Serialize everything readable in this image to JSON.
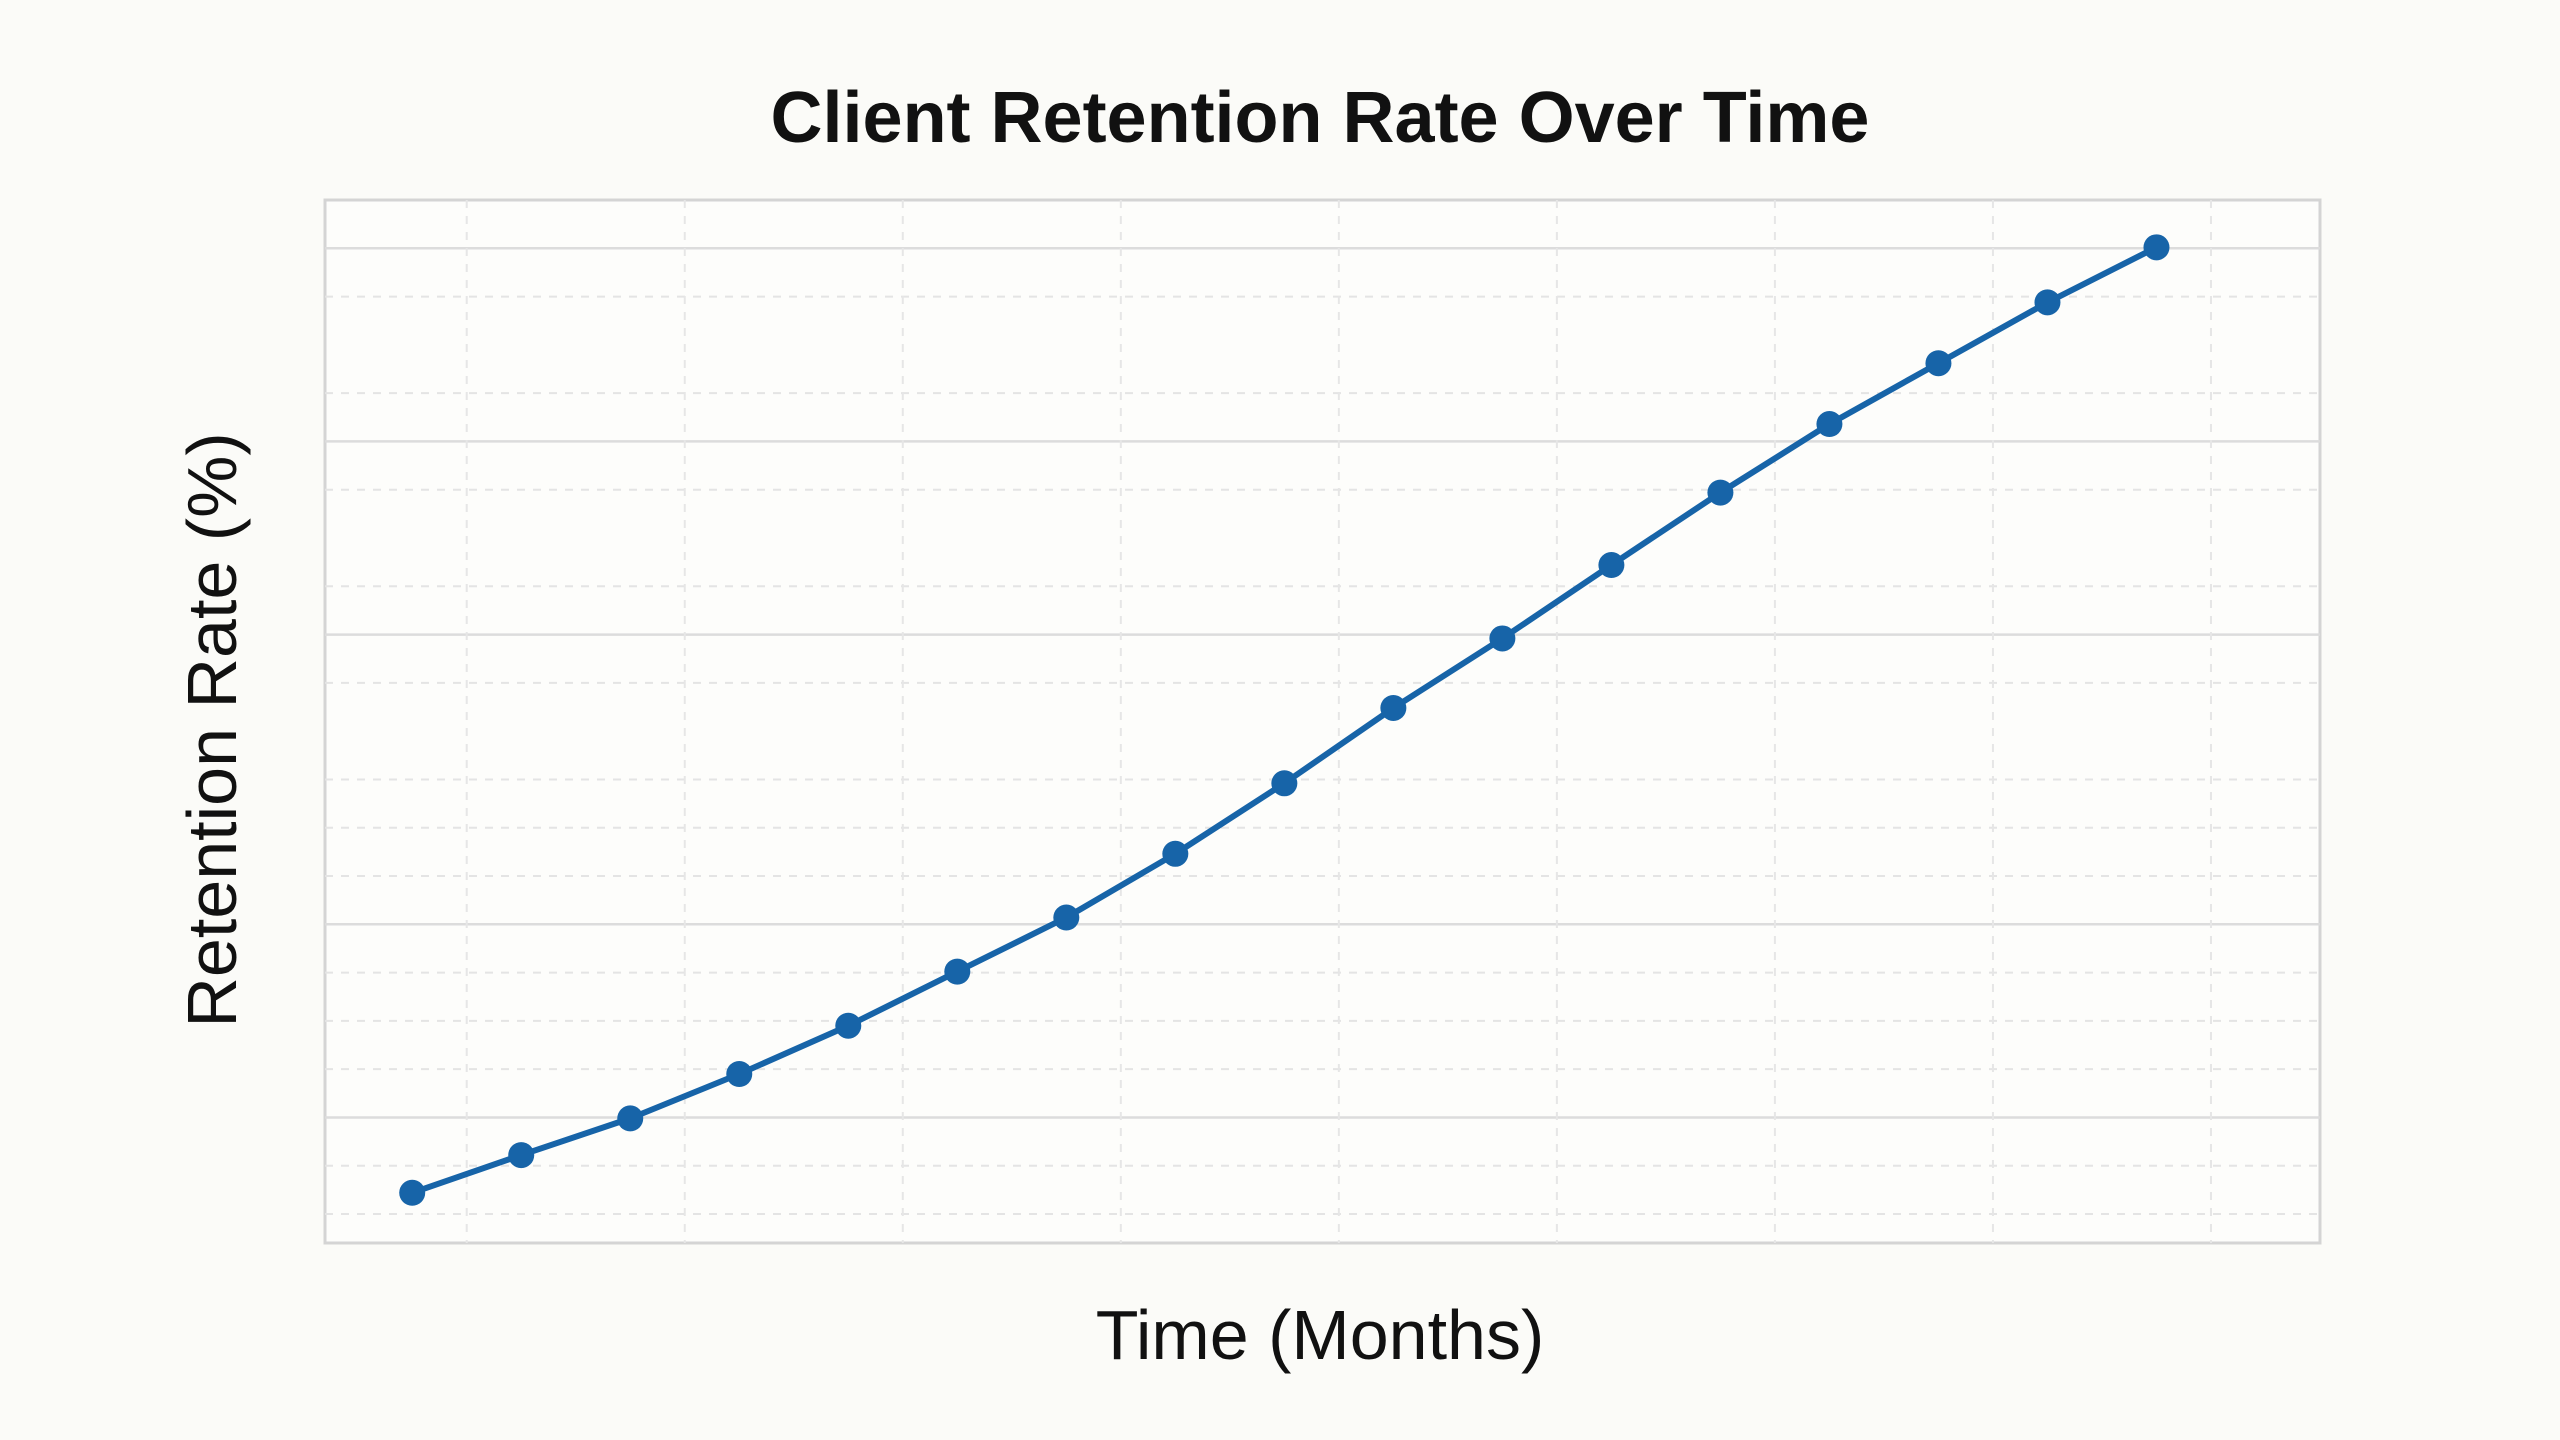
{
  "chart_data": {
    "type": "line",
    "title": "Client Retention Rate Over Time",
    "xlabel": "Time (Months)",
    "ylabel": "Retention Rate (%)",
    "x": [
      1,
      2,
      3,
      4,
      5,
      6,
      7,
      8,
      9,
      10,
      11,
      12,
      13,
      14,
      15,
      16,
      17
    ],
    "series": [
      {
        "values": [
          12.2,
          16.1,
          19.9,
          24.5,
          29.5,
          35.1,
          40.7,
          47.3,
          54.6,
          62.4,
          69.6,
          77.2,
          84.7,
          91.8,
          98.1,
          104.4,
          110.1
        ]
      }
    ],
    "xlim": [
      0.2,
      18.5
    ],
    "ylim": [
      7,
      115
    ],
    "grid": true,
    "line_color": "#1764a8",
    "marker_color": "#1764a8"
  }
}
